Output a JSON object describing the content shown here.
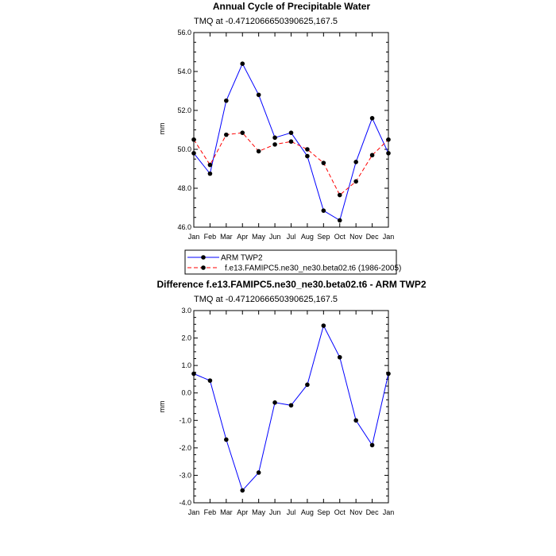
{
  "page": {
    "title": "Annual Cycle of Precipitable Water",
    "title2": "Difference f.e13.FAMIPC5.ne30_ne30.beta02.t6 - ARM TWP2"
  },
  "chart_data": [
    {
      "type": "line",
      "title": "Annual Cycle of Precipitable Water",
      "subtitle": "TMQ at -0.4712066650390625,167.5",
      "xlabel": "",
      "ylabel": "mm",
      "categories": [
        "Jan",
        "Feb",
        "Mar",
        "Apr",
        "May",
        "Jun",
        "Jul",
        "Aug",
        "Sep",
        "Oct",
        "Nov",
        "Dec",
        "Jan"
      ],
      "ylim": [
        46.0,
        56.0
      ],
      "yticks": [
        46.0,
        48.0,
        50.0,
        52.0,
        54.0,
        56.0
      ],
      "ytick_labels": [
        "46.0",
        "48.0",
        "50.0",
        "52.0",
        "54.0",
        "56.0"
      ],
      "legend_position": "below",
      "series": [
        {
          "name": "ARM TWP2",
          "color": "#0000ff",
          "dash": "solid",
          "values": [
            49.8,
            48.75,
            52.5,
            54.4,
            52.8,
            50.6,
            50.85,
            49.65,
            46.85,
            46.35,
            49.35,
            51.6,
            49.8
          ]
        },
        {
          "name": "f.e13.FAMIPC5.ne30_ne30.beta02.t6 (1986-2005)",
          "color": "#ff0000",
          "dash": "dashed",
          "values": [
            50.5,
            49.2,
            50.75,
            50.85,
            49.9,
            50.25,
            50.4,
            50.0,
            49.3,
            47.65,
            48.35,
            49.7,
            50.5
          ]
        }
      ]
    },
    {
      "type": "line",
      "title": "Difference f.e13.FAMIPC5.ne30_ne30.beta02.t6 - ARM TWP2",
      "subtitle": "TMQ at -0.4712066650390625,167.5",
      "xlabel": "",
      "ylabel": "mm",
      "categories": [
        "Jan",
        "Feb",
        "Mar",
        "Apr",
        "May",
        "Jun",
        "Jul",
        "Aug",
        "Sep",
        "Oct",
        "Nov",
        "Dec",
        "Jan"
      ],
      "ylim": [
        -4.0,
        3.0
      ],
      "yticks": [
        -4.0,
        -3.0,
        -2.0,
        -1.0,
        0.0,
        1.0,
        2.0,
        3.0
      ],
      "ytick_labels": [
        "-4.0",
        "-3.0",
        "-2.0",
        "-1.0",
        "0.0",
        "1.0",
        "2.0",
        "3.0"
      ],
      "series": [
        {
          "color": "#0000ff",
          "dash": "solid",
          "values": [
            0.7,
            0.45,
            -1.7,
            -3.55,
            -2.9,
            -0.35,
            -0.45,
            0.3,
            2.45,
            1.3,
            -1.0,
            -1.9,
            0.7
          ]
        }
      ]
    }
  ]
}
